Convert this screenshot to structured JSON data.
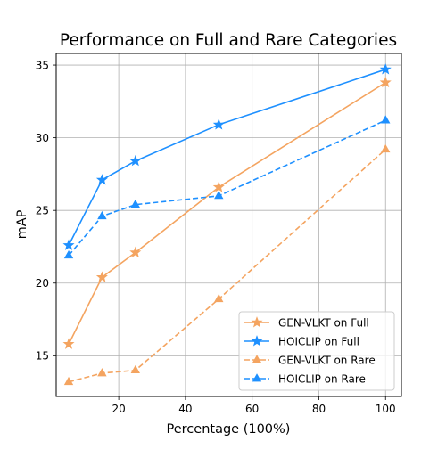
{
  "chart_data": {
    "type": "line",
    "title": "Performance on Full and Rare Categories",
    "xlabel": "Percentage (100%)",
    "ylabel": "mAP",
    "xlim": [
      1.25,
      104.75
    ],
    "ylim": [
      12.2,
      35.8
    ],
    "xticks": [
      20,
      40,
      60,
      80,
      100
    ],
    "yticks": [
      15,
      20,
      25,
      30,
      35
    ],
    "grid": true,
    "legend_position": "lower-right",
    "series": [
      {
        "name": "GEN-VLKT on Full",
        "color": "#f4a460",
        "linestyle": "solid",
        "marker": "star",
        "x": [
          5,
          15,
          25,
          50,
          100
        ],
        "y": [
          15.8,
          20.4,
          22.1,
          26.6,
          33.8
        ]
      },
      {
        "name": "HOICLIP on Full",
        "color": "#1e90ff",
        "linestyle": "solid",
        "marker": "star",
        "x": [
          5,
          15,
          25,
          50,
          100
        ],
        "y": [
          22.6,
          27.1,
          28.4,
          30.9,
          34.7
        ]
      },
      {
        "name": "GEN-VLKT on Rare",
        "color": "#f4a460",
        "linestyle": "dashed",
        "marker": "triangle",
        "x": [
          5,
          15,
          25,
          50,
          100
        ],
        "y": [
          13.2,
          13.8,
          14.0,
          18.9,
          29.2
        ]
      },
      {
        "name": "HOICLIP on Rare",
        "color": "#1e90ff",
        "linestyle": "dashed",
        "marker": "triangle",
        "x": [
          5,
          15,
          25,
          50,
          100
        ],
        "y": [
          21.9,
          24.6,
          25.4,
          26.0,
          31.2
        ]
      }
    ]
  }
}
